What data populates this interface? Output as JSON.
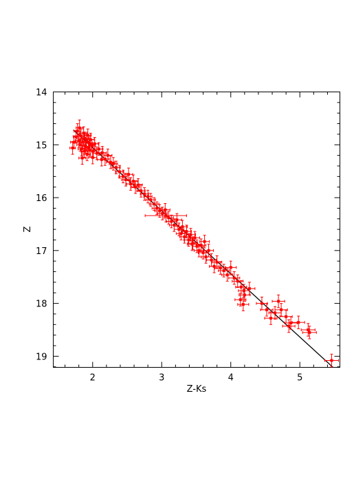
{
  "chart_data": {
    "type": "scatter",
    "xlabel": "Z-Ks",
    "ylabel": "Z",
    "xlim": [
      1.43,
      5.58
    ],
    "ylim": [
      19.21,
      14.0
    ],
    "y_inverted": true,
    "x_ticks_major": [
      2,
      3,
      4,
      5
    ],
    "y_ticks_major": [
      14,
      15,
      16,
      17,
      18,
      19
    ],
    "marker_color": "#ff0000",
    "line_color": "#000000",
    "fit_line": {
      "x": [
        1.72,
        5.48
      ],
      "y": [
        14.72,
        19.21
      ]
    },
    "points": [
      [
        1.71,
        15.06,
        0.04,
        0.12
      ],
      [
        1.73,
        14.95,
        0.05,
        0.12
      ],
      [
        1.76,
        14.85,
        0.04,
        0.12
      ],
      [
        1.78,
        14.74,
        0.05,
        0.14
      ],
      [
        1.8,
        14.92,
        0.05,
        0.13
      ],
      [
        1.81,
        14.68,
        0.05,
        0.15
      ],
      [
        1.82,
        15.0,
        0.05,
        0.12
      ],
      [
        1.83,
        14.83,
        0.05,
        0.13
      ],
      [
        1.84,
        15.08,
        0.05,
        0.13
      ],
      [
        1.86,
        14.95,
        0.05,
        0.12
      ],
      [
        1.87,
        14.78,
        0.05,
        0.12
      ],
      [
        1.88,
        15.12,
        0.05,
        0.12
      ],
      [
        1.89,
        14.88,
        0.05,
        0.12
      ],
      [
        1.9,
        15.03,
        0.05,
        0.13
      ],
      [
        1.91,
        14.93,
        0.05,
        0.13
      ],
      [
        1.92,
        15.18,
        0.05,
        0.12
      ],
      [
        1.93,
        14.82,
        0.05,
        0.12
      ],
      [
        1.94,
        15.06,
        0.05,
        0.13
      ],
      [
        1.95,
        14.97,
        0.05,
        0.13
      ],
      [
        1.96,
        15.1,
        0.05,
        0.12
      ],
      [
        1.97,
        14.9,
        0.05,
        0.12
      ],
      [
        1.99,
        15.02,
        0.05,
        0.12
      ],
      [
        2.01,
        15.12,
        0.05,
        0.13
      ],
      [
        2.03,
        14.98,
        0.05,
        0.12
      ],
      [
        2.06,
        15.16,
        0.06,
        0.12
      ],
      [
        2.09,
        15.08,
        0.06,
        0.12
      ],
      [
        2.14,
        15.15,
        0.06,
        0.12
      ],
      [
        2.18,
        15.27,
        0.06,
        0.12
      ],
      [
        2.22,
        15.2,
        0.06,
        0.12
      ],
      [
        2.26,
        15.33,
        0.06,
        0.12
      ],
      [
        2.3,
        15.36,
        0.06,
        0.12
      ],
      [
        2.34,
        15.43,
        0.06,
        0.12
      ],
      [
        2.39,
        15.51,
        0.06,
        0.12
      ],
      [
        2.44,
        15.6,
        0.06,
        0.12
      ],
      [
        2.48,
        15.66,
        0.06,
        0.12
      ],
      [
        2.52,
        15.56,
        0.06,
        0.12
      ],
      [
        2.55,
        15.74,
        0.06,
        0.12
      ],
      [
        2.59,
        15.69,
        0.06,
        0.12
      ],
      [
        2.62,
        15.8,
        0.06,
        0.12
      ],
      [
        2.66,
        15.76,
        0.06,
        0.12
      ],
      [
        2.7,
        15.87,
        0.06,
        0.12
      ],
      [
        2.75,
        15.93,
        0.06,
        0.12
      ],
      [
        2.8,
        15.98,
        0.06,
        0.12
      ],
      [
        2.84,
        16.04,
        0.07,
        0.12
      ],
      [
        2.89,
        16.12,
        0.07,
        0.12
      ],
      [
        2.93,
        16.2,
        0.07,
        0.12
      ],
      [
        2.97,
        16.25,
        0.07,
        0.12
      ],
      [
        3.01,
        16.3,
        0.07,
        0.12
      ],
      [
        3.05,
        16.23,
        0.07,
        0.12
      ],
      [
        3.1,
        16.38,
        0.07,
        0.12
      ],
      [
        3.14,
        16.45,
        0.07,
        0.12
      ],
      [
        3.18,
        16.52,
        0.07,
        0.12
      ],
      [
        3.22,
        16.42,
        0.07,
        0.12
      ],
      [
        3.25,
        16.6,
        0.07,
        0.12
      ],
      [
        3.28,
        16.68,
        0.07,
        0.12
      ],
      [
        3.3,
        16.55,
        0.07,
        0.12
      ],
      [
        3.33,
        16.74,
        0.07,
        0.12
      ],
      [
        3.36,
        16.64,
        0.07,
        0.12
      ],
      [
        3.39,
        16.8,
        0.07,
        0.12
      ],
      [
        3.42,
        16.7,
        0.07,
        0.12
      ],
      [
        3.45,
        16.86,
        0.07,
        0.12
      ],
      [
        3.48,
        16.76,
        0.07,
        0.12
      ],
      [
        3.51,
        16.92,
        0.07,
        0.12
      ],
      [
        3.54,
        17.0,
        0.07,
        0.12
      ],
      [
        3.57,
        16.9,
        0.07,
        0.12
      ],
      [
        3.6,
        17.04,
        0.07,
        0.12
      ],
      [
        3.64,
        17.12,
        0.07,
        0.12
      ],
      [
        3.68,
        17.0,
        0.07,
        0.12
      ],
      [
        3.72,
        17.18,
        0.07,
        0.12
      ],
      [
        3.76,
        17.3,
        0.07,
        0.12
      ],
      [
        3.8,
        17.22,
        0.07,
        0.12
      ],
      [
        3.85,
        17.33,
        0.08,
        0.12
      ],
      [
        3.9,
        17.38,
        0.08,
        0.12
      ],
      [
        3.95,
        17.46,
        0.08,
        0.12
      ],
      [
        4.0,
        17.32,
        0.08,
        0.12
      ],
      [
        4.05,
        17.52,
        0.08,
        0.12
      ],
      [
        4.1,
        17.58,
        0.08,
        0.12
      ],
      [
        4.15,
        17.69,
        0.08,
        0.12
      ],
      [
        4.19,
        17.76,
        0.08,
        0.12
      ],
      [
        4.27,
        17.72,
        0.08,
        0.12
      ],
      [
        4.14,
        17.93,
        0.08,
        0.12
      ],
      [
        4.18,
        18.02,
        0.08,
        0.12
      ],
      [
        4.45,
        18.0,
        0.08,
        0.12
      ],
      [
        4.52,
        18.12,
        0.09,
        0.12
      ],
      [
        4.58,
        18.28,
        0.09,
        0.12
      ],
      [
        4.64,
        18.18,
        0.09,
        0.12
      ],
      [
        4.69,
        17.96,
        0.09,
        0.12
      ],
      [
        4.73,
        18.12,
        0.09,
        0.12
      ],
      [
        4.8,
        18.25,
        0.09,
        0.12
      ],
      [
        4.84,
        18.43,
        0.09,
        0.12
      ],
      [
        4.87,
        18.37,
        0.09,
        0.12
      ],
      [
        4.98,
        18.36,
        0.09,
        0.12
      ],
      [
        5.12,
        18.5,
        0.1,
        0.12
      ],
      [
        5.14,
        18.55,
        0.1,
        0.12
      ],
      [
        5.46,
        19.08,
        0.1,
        0.12
      ],
      [
        1.85,
        15.25,
        0.05,
        0.12
      ],
      [
        2.0,
        15.24,
        0.06,
        0.12
      ],
      [
        2.13,
        15.28,
        0.06,
        0.12
      ],
      [
        3.06,
        16.34,
        0.3,
        0.12
      ],
      [
        3.44,
        16.88,
        0.07,
        0.12
      ],
      [
        3.62,
        16.83,
        0.07,
        0.12
      ],
      [
        4.2,
        17.84,
        0.08,
        0.12
      ]
    ]
  }
}
